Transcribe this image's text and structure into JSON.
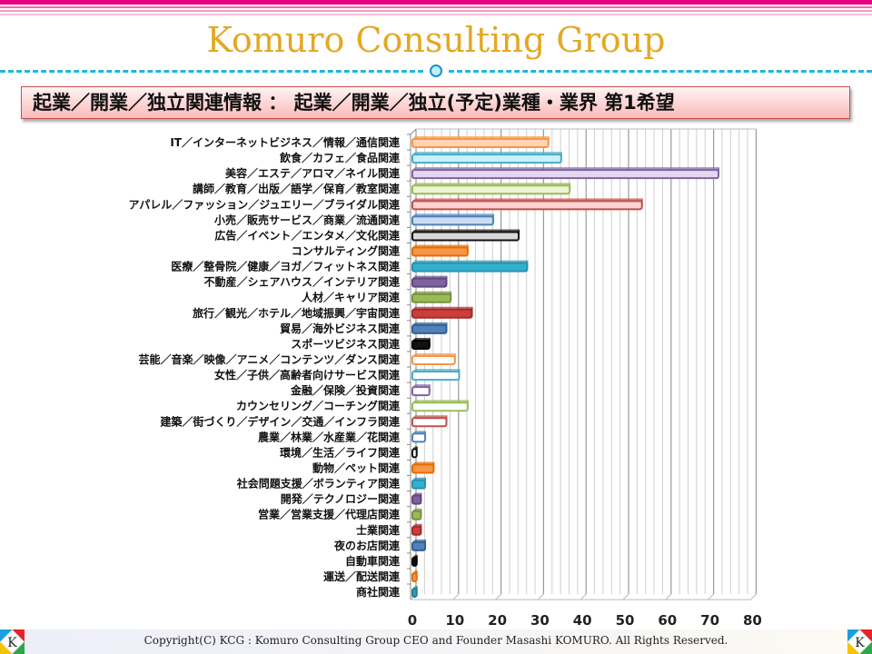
{
  "header": {
    "title": "Komuro Consulting Group",
    "subtitle": "起業／開業／独立関連情報 ： 起業／開業／独立(予定)業種・業界 第1希望"
  },
  "footer": {
    "copyright": "Copyright(C) KCG : Komuro Consulting Group CEO and Founder Masashi KOMURO. All Rights Reserved.",
    "logo_letter": "K"
  },
  "colors": {
    "title": "#e3a823",
    "accent_pink": "#e6007e",
    "dash": "#1fb6dd"
  },
  "chart_data": {
    "type": "bar",
    "orientation": "horizontal",
    "style": "3d",
    "title": "",
    "xlabel": "",
    "ylabel": "",
    "xlim": [
      0,
      80
    ],
    "xticks": [
      0,
      10,
      20,
      30,
      40,
      50,
      60,
      70,
      80
    ],
    "grid": true,
    "legend": "none",
    "categories": [
      "IT／インターネットビジネス／情報／通信関連",
      "飲食／カフェ／食品関連",
      "美容／エステ／アロマ／ネイル関連",
      "講師／教育／出版／語学／保育／教室関連",
      "アパレル／ファッション／ジュエリー／ブライダル関連",
      "小売／販売サービス／商業／流通関連",
      "広告／イベント／エンタメ／文化関連",
      "コンサルティング関連",
      "医療／整骨院／健康／ヨガ／フィットネス関連",
      "不動産／シェアハウス／インテリア関連",
      "人材／キャリア関連",
      "旅行／観光／ホテル／地域振興／宇宙関連",
      "貿易／海外ビジネス関連",
      "スポーツビジネス関連",
      "芸能／音楽／映像／アニメ／コンテンツ／ダンス関連",
      "女性／子供／高齢者向けサービス関連",
      "金融／保険／投資関連",
      "カウンセリング／コーチング関連",
      "建築／街づくり／デザイン／交通／インフラ関連",
      "農業／林業／水産業／花関連",
      "環境／生活／ライフ関連",
      "動物／ペット関連",
      "社会問題支援／ボランティア関連",
      "開発／テクノロジー関連",
      "営業／営業支援／代理店関連",
      "士業関連",
      "夜のお店関連",
      "自動車関連",
      "運送／配送関連",
      "商社関連"
    ],
    "values": [
      32,
      35,
      72,
      37,
      54,
      19,
      25,
      13,
      27,
      8,
      9,
      14,
      8,
      4,
      10,
      11,
      4,
      13,
      8,
      3,
      1,
      5,
      3,
      2,
      2,
      2,
      3,
      1,
      1,
      1
    ],
    "bar_styles": [
      {
        "fill": "#fcd5b4",
        "stroke": "#f79646"
      },
      {
        "fill": "#c9f1ff",
        "stroke": "#4bacc6"
      },
      {
        "fill": "#e3d8f1",
        "stroke": "#8064a2"
      },
      {
        "fill": "#ebf5d1",
        "stroke": "#9bbb59"
      },
      {
        "fill": "#fdd3d3",
        "stroke": "#c0504d"
      },
      {
        "fill": "#c9dcf3",
        "stroke": "#4f81bd"
      },
      {
        "fill": "#d9d9d9",
        "stroke": "#111111"
      },
      {
        "fill": "#f79646",
        "stroke": "#e36c09"
      },
      {
        "fill": "#31b0d0",
        "stroke": "#2a93ad"
      },
      {
        "fill": "#8064a2",
        "stroke": "#5f497a"
      },
      {
        "fill": "#9bbb59",
        "stroke": "#76923c"
      },
      {
        "fill": "#d03c3c",
        "stroke": "#a02c2c"
      },
      {
        "fill": "#4f81bd",
        "stroke": "#365f91"
      },
      {
        "fill": "#111111",
        "stroke": "#000000"
      },
      {
        "fill": "#ffffff",
        "stroke": "#f79646"
      },
      {
        "fill": "#ffffff",
        "stroke": "#4bacc6"
      },
      {
        "fill": "#ffffff",
        "stroke": "#8064a2"
      },
      {
        "fill": "#ffffff",
        "stroke": "#9bbb59"
      },
      {
        "fill": "#ffffff",
        "stroke": "#c0504d"
      },
      {
        "fill": "#ffffff",
        "stroke": "#4f81bd"
      },
      {
        "fill": "#ffffff",
        "stroke": "#111111"
      },
      {
        "fill": "#f79646",
        "stroke": "#e36c09"
      },
      {
        "fill": "#31b0d0",
        "stroke": "#2a93ad"
      },
      {
        "fill": "#8064a2",
        "stroke": "#5f497a"
      },
      {
        "fill": "#9bbb59",
        "stroke": "#76923c"
      },
      {
        "fill": "#d03c3c",
        "stroke": "#a02c2c"
      },
      {
        "fill": "#4f81bd",
        "stroke": "#365f91"
      },
      {
        "fill": "#111111",
        "stroke": "#000000"
      },
      {
        "fill": "#f79646",
        "stroke": "#e36c09"
      },
      {
        "fill": "#31a0b0",
        "stroke": "#2a7f8d"
      }
    ]
  }
}
